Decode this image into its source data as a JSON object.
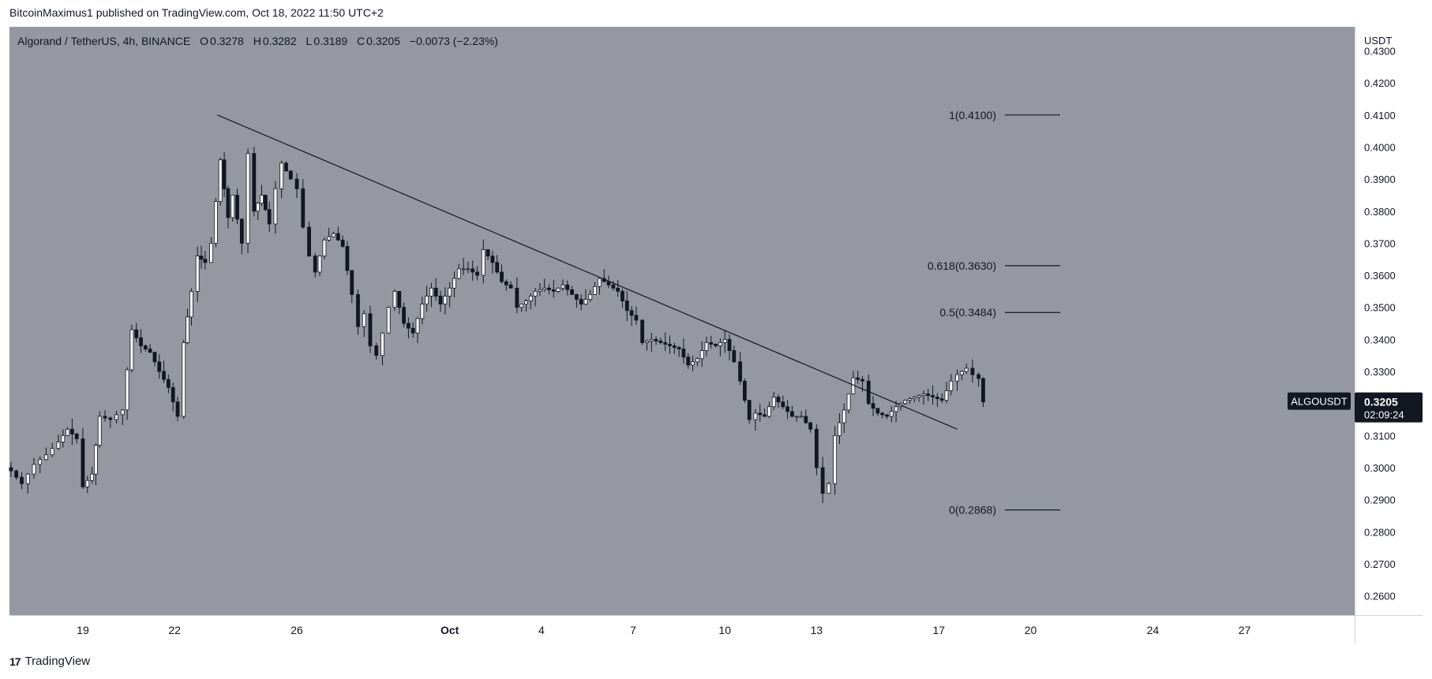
{
  "header": {
    "published": "BitcoinMaximus1 published on TradingView.com, Oct 18, 2022 11:50 UTC+2"
  },
  "legend": {
    "symbol": "Algorand / TetherUS, 4h, BINANCE",
    "o_label": "O",
    "o": "0.3278",
    "h_label": "H",
    "h": "0.3282",
    "l_label": "L",
    "l": "0.3189",
    "c_label": "C",
    "c": "0.3205",
    "change": "−0.0073 (−2.23%)"
  },
  "price_axis": {
    "currency": "USDT",
    "ticks": [
      "0.4300",
      "0.4200",
      "0.4100",
      "0.4000",
      "0.3900",
      "0.3800",
      "0.3700",
      "0.3600",
      "0.3500",
      "0.3400",
      "0.3300",
      "0.3200",
      "0.3100",
      "0.3000",
      "0.2900",
      "0.2800",
      "0.2700",
      "0.2600"
    ],
    "ticker_tag": "ALGOUSDT",
    "last_price": "0.3205",
    "countdown": "02:09:24"
  },
  "time_axis": {
    "ticks": [
      "19",
      "22",
      "26",
      "Oct",
      "4",
      "7",
      "10",
      "13",
      "17",
      "20",
      "24",
      "27"
    ]
  },
  "fib_levels": [
    {
      "label": "1(0.4100)",
      "value": 0.41
    },
    {
      "label": "0.618(0.3630)",
      "value": 0.363
    },
    {
      "label": "0.5(0.3484)",
      "value": 0.3484
    },
    {
      "label": "0(0.2868)",
      "value": 0.2868
    }
  ],
  "footer": {
    "logo": "17",
    "brand": "TradingView"
  },
  "colors": {
    "plot_bg": "#9598a1",
    "up_body": "#ffffff",
    "down_body": "#131722",
    "wick": "#131722",
    "tag_bg": "#131722"
  },
  "chart_data": {
    "type": "candlestick",
    "title": "Algorand / TetherUS, 4h, BINANCE",
    "ylabel": "USDT",
    "ylim": [
      0.254,
      0.4375
    ],
    "x_tick_labels": [
      "19",
      "22",
      "26",
      "Oct",
      "4",
      "7",
      "10",
      "13",
      "17",
      "20",
      "24",
      "27"
    ],
    "x_tick_days": [
      19,
      22,
      26,
      31,
      34,
      37,
      40,
      43,
      47,
      50,
      54,
      57
    ],
    "x_range_days": [
      16.6,
      60.6
    ],
    "ohlc_anchors_day_close": [
      [
        16.65,
        0.299
      ],
      [
        17.0,
        0.295
      ],
      [
        17.4,
        0.301
      ],
      [
        17.8,
        0.304
      ],
      [
        18.2,
        0.308
      ],
      [
        18.5,
        0.312
      ],
      [
        18.8,
        0.309
      ],
      [
        19.0,
        0.294
      ],
      [
        19.3,
        0.298
      ],
      [
        19.55,
        0.316
      ],
      [
        19.9,
        0.315
      ],
      [
        20.3,
        0.318
      ],
      [
        20.6,
        0.343
      ],
      [
        20.9,
        0.338
      ],
      [
        21.2,
        0.336
      ],
      [
        21.5,
        0.33
      ],
      [
        21.8,
        0.325
      ],
      [
        22.1,
        0.316
      ],
      [
        22.3,
        0.339
      ],
      [
        22.55,
        0.355
      ],
      [
        22.75,
        0.366
      ],
      [
        23.0,
        0.364
      ],
      [
        23.2,
        0.37
      ],
      [
        23.5,
        0.396
      ],
      [
        23.75,
        0.378
      ],
      [
        23.9,
        0.385
      ],
      [
        24.2,
        0.37
      ],
      [
        24.4,
        0.398
      ],
      [
        24.6,
        0.38
      ],
      [
        24.85,
        0.385
      ],
      [
        25.1,
        0.376
      ],
      [
        25.3,
        0.387
      ],
      [
        25.5,
        0.395
      ],
      [
        25.8,
        0.39
      ],
      [
        26.0,
        0.387
      ],
      [
        26.2,
        0.375
      ],
      [
        26.4,
        0.366
      ],
      [
        26.6,
        0.361
      ],
      [
        26.9,
        0.371
      ],
      [
        27.2,
        0.373
      ],
      [
        27.5,
        0.369
      ],
      [
        27.8,
        0.354
      ],
      [
        28.0,
        0.344
      ],
      [
        28.2,
        0.348
      ],
      [
        28.4,
        0.338
      ],
      [
        28.6,
        0.335
      ],
      [
        28.8,
        0.342
      ],
      [
        29.0,
        0.35
      ],
      [
        29.2,
        0.355
      ],
      [
        29.5,
        0.345
      ],
      [
        29.8,
        0.342
      ],
      [
        30.1,
        0.351
      ],
      [
        30.4,
        0.356
      ],
      [
        30.7,
        0.351
      ],
      [
        31.0,
        0.356
      ],
      [
        31.3,
        0.362
      ],
      [
        31.6,
        0.362
      ],
      [
        31.9,
        0.36
      ],
      [
        32.1,
        0.368
      ],
      [
        32.4,
        0.364
      ],
      [
        32.7,
        0.358
      ],
      [
        33.0,
        0.356
      ],
      [
        33.2,
        0.35
      ],
      [
        33.5,
        0.352
      ],
      [
        33.8,
        0.355
      ],
      [
        34.1,
        0.356
      ],
      [
        34.4,
        0.355
      ],
      [
        34.7,
        0.357
      ],
      [
        35.0,
        0.354
      ],
      [
        35.3,
        0.351
      ],
      [
        35.6,
        0.354
      ],
      [
        35.9,
        0.359
      ],
      [
        36.2,
        0.357
      ],
      [
        36.5,
        0.355
      ],
      [
        36.8,
        0.349
      ],
      [
        37.1,
        0.346
      ],
      [
        37.3,
        0.339
      ],
      [
        37.6,
        0.34
      ],
      [
        37.9,
        0.339
      ],
      [
        38.2,
        0.338
      ],
      [
        38.5,
        0.337
      ],
      [
        38.8,
        0.332
      ],
      [
        39.1,
        0.334
      ],
      [
        39.4,
        0.339
      ],
      [
        39.7,
        0.338
      ],
      [
        40.0,
        0.34
      ],
      [
        40.3,
        0.333
      ],
      [
        40.5,
        0.327
      ],
      [
        40.8,
        0.315
      ],
      [
        41.0,
        0.317
      ],
      [
        41.3,
        0.316
      ],
      [
        41.6,
        0.322
      ],
      [
        41.9,
        0.319
      ],
      [
        42.2,
        0.316
      ],
      [
        42.5,
        0.316
      ],
      [
        42.8,
        0.312
      ],
      [
        43.0,
        0.3
      ],
      [
        43.2,
        0.292
      ],
      [
        43.4,
        0.295
      ],
      [
        43.6,
        0.31
      ],
      [
        43.9,
        0.318
      ],
      [
        44.2,
        0.328
      ],
      [
        44.5,
        0.327
      ],
      [
        44.7,
        0.32
      ],
      [
        45.0,
        0.317
      ],
      [
        45.3,
        0.316
      ],
      [
        45.6,
        0.319
      ],
      [
        45.9,
        0.321
      ],
      [
        46.2,
        0.322
      ],
      [
        46.5,
        0.323
      ],
      [
        46.8,
        0.322
      ],
      [
        47.1,
        0.321
      ],
      [
        47.4,
        0.327
      ],
      [
        47.6,
        0.329
      ],
      [
        47.9,
        0.331
      ],
      [
        48.1,
        0.329
      ],
      [
        48.3,
        0.3278
      ],
      [
        48.45,
        0.3205
      ]
    ],
    "trendline": {
      "start": [
        23.4,
        0.41
      ],
      "end": [
        47.6,
        0.312
      ]
    }
  }
}
